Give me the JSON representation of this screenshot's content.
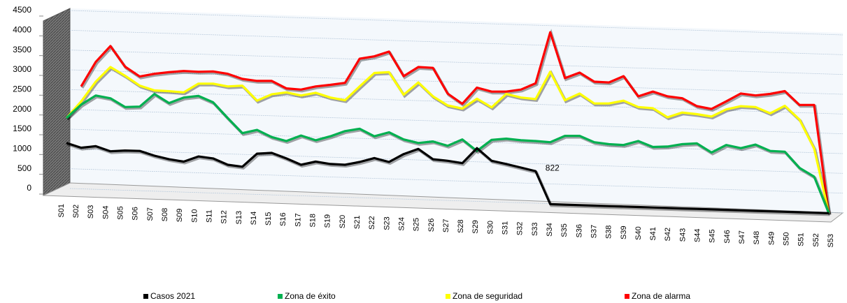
{
  "chart_data": {
    "type": "line",
    "categories": [
      "S01",
      "S02",
      "S03",
      "S04",
      "S05",
      "S06",
      "S07",
      "S08",
      "S09",
      "S10",
      "S11",
      "S12",
      "S13",
      "S14",
      "S15",
      "S16",
      "S17",
      "S18",
      "S19",
      "S20",
      "S21",
      "S22",
      "S23",
      "S24",
      "S25",
      "S26",
      "S27",
      "S28",
      "S29",
      "S30",
      "S31",
      "S32",
      "S33",
      "S34",
      "S35",
      "S36",
      "S37",
      "S38",
      "S39",
      "S40",
      "S41",
      "S42",
      "S43",
      "S44",
      "S45",
      "S46",
      "S47",
      "S48",
      "S49",
      "S50",
      "S51",
      "S52",
      "S53"
    ],
    "series": [
      {
        "name": "Casos 2021",
        "color": "#000000",
        "values": [
          1150,
          1042,
          1094,
          976,
          1008,
          1010,
          902,
          824,
          776,
          918,
          880,
          732,
          694,
          1036,
          1068,
          940,
          792,
          884,
          836,
          828,
          910,
          1022,
          934,
          1146,
          1288,
          1040,
          1012,
          964,
          1356,
          1048,
          980,
          902,
          822,
          0,
          0,
          0,
          0,
          0,
          0,
          0,
          0,
          0,
          0,
          0,
          0,
          0,
          0,
          0,
          0,
          0,
          0,
          0,
          0
        ]
      },
      {
        "name": "Zona de éxito",
        "color": "#00b050",
        "values": [
          1780,
          2132,
          2374,
          2316,
          2108,
          2130,
          2462,
          2244,
          2396,
          2448,
          2300,
          1912,
          1544,
          1636,
          1468,
          1380,
          1532,
          1424,
          1536,
          1678,
          1750,
          1572,
          1684,
          1516,
          1438,
          1490,
          1392,
          1564,
          1286,
          1578,
          1620,
          1592,
          1584,
          1566,
          1738,
          1750,
          1602,
          1564,
          1556,
          1668,
          1530,
          1552,
          1624,
          1656,
          1438,
          1640,
          1572,
          1674,
          1526,
          1518,
          1120,
          912,
          0
        ]
      },
      {
        "name": "Zona de seguridad",
        "color": "#ffff00",
        "values": [
          1780,
          2212,
          2724,
          3106,
          2898,
          2660,
          2552,
          2544,
          2526,
          2758,
          2770,
          2712,
          2744,
          2376,
          2548,
          2610,
          2542,
          2624,
          2516,
          2458,
          2820,
          3172,
          3204,
          2646,
          2968,
          2630,
          2412,
          2344,
          2606,
          2398,
          2750,
          2672,
          2644,
          3346,
          2638,
          2820,
          2582,
          2594,
          2676,
          2528,
          2510,
          2292,
          2424,
          2396,
          2348,
          2540,
          2632,
          2624,
          2476,
          2680,
          2342,
          1624,
          0
        ]
      },
      {
        "name": "Zona de alarma",
        "color": "#ff0000",
        "values": [
          null,
          2592,
          3224,
          3636,
          3128,
          2890,
          2972,
          3024,
          3066,
          3058,
          3080,
          3032,
          2914,
          2876,
          2888,
          2710,
          2692,
          2784,
          2836,
          2898,
          3520,
          3592,
          3724,
          3116,
          3358,
          3350,
          2712,
          2464,
          2886,
          2798,
          2810,
          2872,
          3044,
          4346,
          3198,
          3350,
          3132,
          3124,
          3296,
          2798,
          2930,
          2822,
          2786,
          2598,
          2540,
          2742,
          2954,
          2916,
          2968,
          3050,
          2712,
          2724,
          0
        ]
      }
    ],
    "ylim": [
      0,
      4500
    ],
    "yticks": [
      0,
      500,
      1000,
      1500,
      2000,
      2500,
      3000,
      3500,
      4000,
      4500
    ],
    "grid": true,
    "legend": "bottom"
  }
}
